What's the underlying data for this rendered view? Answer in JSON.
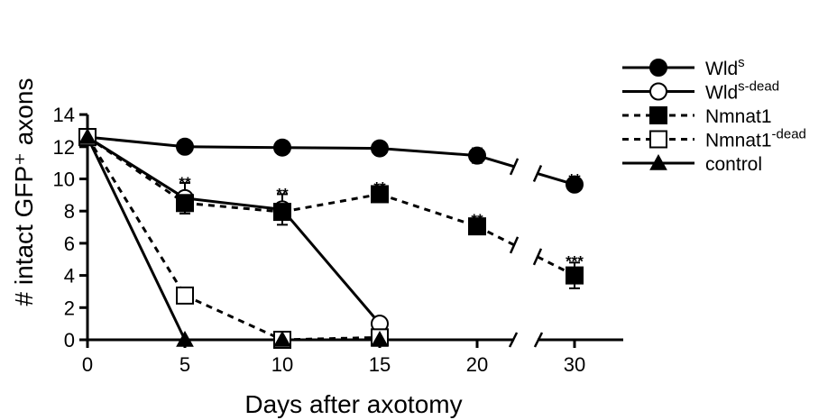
{
  "chart_data": {
    "type": "line",
    "ylabel": "# intact GFP⁺ axons",
    "xlabel": "Days after axotomy",
    "x_ticks": [
      "0",
      "5",
      "10",
      "15",
      "20",
      "30"
    ],
    "x_positions": [
      0,
      5,
      10,
      15,
      20,
      25
    ],
    "y_ticks": [
      "0",
      "2",
      "4",
      "6",
      "8",
      "10",
      "12",
      "14"
    ],
    "ylim": [
      0,
      14
    ],
    "axis_break": "between 20 and 30",
    "legend_position": "right",
    "series": [
      {
        "name": "Wld",
        "name_sup": "s",
        "marker": "filled-circle",
        "line": "solid",
        "x": [
          0,
          5,
          10,
          15,
          20,
          30
        ],
        "y": [
          12.6,
          12.0,
          11.95,
          11.9,
          11.45,
          9.65
        ],
        "err": [
          0,
          0.15,
          0.4,
          0.4,
          0.45,
          0.25
        ]
      },
      {
        "name": "Wld",
        "name_sup": "s-dead",
        "marker": "open-circle",
        "line": "solid",
        "x": [
          0,
          5,
          10,
          15
        ],
        "y": [
          12.6,
          8.8,
          8.1,
          1.0
        ],
        "err": [
          0,
          0.95,
          0.95,
          0.25
        ]
      },
      {
        "name": "Nmnat1",
        "name_sup": "",
        "marker": "filled-square",
        "line": "dashed",
        "x": [
          0,
          5,
          10,
          15,
          20,
          30
        ],
        "y": [
          12.6,
          8.5,
          7.95,
          9.05,
          7.05,
          4.0
        ],
        "err": [
          0,
          0.65,
          0.3,
          0.4,
          0.35,
          0.8
        ]
      },
      {
        "name": "Nmnat1",
        "name_sup": "-dead",
        "marker": "open-square",
        "line": "dashed",
        "x": [
          0,
          5,
          10,
          15
        ],
        "y": [
          12.6,
          2.75,
          0.0,
          0.15
        ],
        "err": [
          0,
          0.4,
          0,
          0.1
        ]
      },
      {
        "name": "control",
        "name_sup": "",
        "marker": "filled-triangle",
        "line": "solid",
        "x": [
          0,
          5,
          10,
          15
        ],
        "y": [
          12.6,
          0.0,
          0.0,
          0.0
        ],
        "err": [
          0,
          0,
          0,
          0
        ]
      }
    ],
    "annotations": [
      {
        "text": "**",
        "x": 5,
        "y": 9.8
      },
      {
        "text": "**",
        "x": 10,
        "y": 9.1
      },
      {
        "text": "**",
        "x": 15,
        "y": 9.5
      },
      {
        "text": "**",
        "x": 20,
        "y": 7.5
      },
      {
        "text": "**",
        "x": 30,
        "y": 10.0
      },
      {
        "text": "***",
        "x": 30,
        "y": 4.9
      }
    ]
  }
}
